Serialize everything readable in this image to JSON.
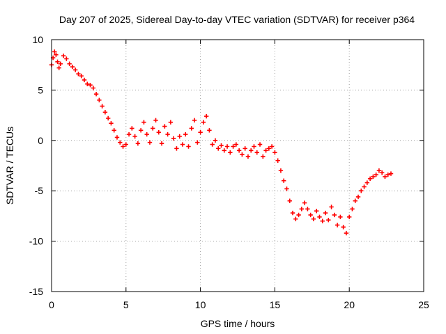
{
  "chart_data": {
    "type": "scatter",
    "title": "Day 207 of 2025, Sidereal Day-to-day VTEC variation (SDTVAR) for receiver p364",
    "xlabel": "GPS time / hours",
    "ylabel": "SDTVAR / TECUs",
    "xlim": [
      0,
      25
    ],
    "ylim": [
      -15,
      10
    ],
    "xticks": [
      0,
      5,
      10,
      15,
      20,
      25
    ],
    "yticks": [
      -15,
      -10,
      -5,
      0,
      5,
      10
    ],
    "x_tick_labels": [
      "0",
      "5",
      "10",
      "15",
      "20",
      "25"
    ],
    "y_tick_labels": [
      "-15",
      "-10",
      "-5",
      "0",
      "5",
      "10"
    ],
    "grid": true,
    "marker": "plus",
    "series": [
      {
        "name": "SDTVAR",
        "color": "#ff0000",
        "x": [
          0.0,
          0.1,
          0.2,
          0.3,
          0.4,
          0.5,
          0.6,
          0.8,
          1.0,
          1.2,
          1.4,
          1.6,
          1.8,
          2.0,
          2.2,
          2.4,
          2.6,
          2.8,
          3.0,
          3.2,
          3.4,
          3.6,
          3.8,
          4.0,
          4.2,
          4.4,
          4.6,
          4.8,
          5.0,
          5.2,
          5.4,
          5.6,
          5.8,
          6.0,
          6.2,
          6.4,
          6.6,
          6.8,
          7.0,
          7.2,
          7.4,
          7.6,
          7.8,
          8.0,
          8.2,
          8.4,
          8.6,
          8.8,
          9.0,
          9.2,
          9.4,
          9.6,
          9.8,
          10.0,
          10.2,
          10.4,
          10.6,
          10.8,
          11.0,
          11.2,
          11.4,
          11.6,
          11.8,
          12.0,
          12.2,
          12.4,
          12.6,
          12.8,
          13.0,
          13.2,
          13.4,
          13.6,
          13.8,
          14.0,
          14.2,
          14.4,
          14.6,
          14.8,
          15.0,
          15.2,
          15.4,
          15.6,
          15.8,
          16.0,
          16.2,
          16.4,
          16.6,
          16.8,
          17.0,
          17.2,
          17.4,
          17.6,
          17.8,
          18.0,
          18.2,
          18.4,
          18.6,
          18.8,
          19.0,
          19.2,
          19.4,
          19.6,
          19.8,
          20.0,
          20.2,
          20.4,
          20.6,
          20.8,
          21.0,
          21.2,
          21.4,
          21.6,
          21.8,
          22.0,
          22.2,
          22.4,
          22.6,
          22.8
        ],
        "y": [
          7.5,
          8.2,
          8.8,
          8.5,
          7.8,
          7.2,
          7.6,
          8.4,
          8.1,
          7.6,
          7.3,
          7.0,
          6.6,
          6.4,
          6.0,
          5.6,
          5.5,
          5.2,
          4.6,
          4.0,
          3.4,
          2.8,
          2.2,
          1.7,
          1.0,
          0.3,
          -0.2,
          -0.6,
          -0.4,
          0.6,
          1.2,
          0.4,
          -0.3,
          1.0,
          1.8,
          0.6,
          -0.2,
          1.2,
          2.0,
          0.8,
          -0.3,
          1.4,
          0.6,
          1.8,
          0.2,
          -0.8,
          0.4,
          -0.4,
          0.6,
          -0.6,
          1.2,
          2.0,
          -0.2,
          0.8,
          1.8,
          2.4,
          1.0,
          -0.4,
          0.0,
          -0.8,
          -0.5,
          -1.0,
          -0.6,
          -1.2,
          -0.6,
          -0.4,
          -1.0,
          -1.4,
          -0.8,
          -1.6,
          -1.0,
          -0.6,
          -1.2,
          -0.4,
          -1.6,
          -1.0,
          -0.8,
          -0.6,
          -1.2,
          -2.0,
          -3.0,
          -4.0,
          -4.8,
          -6.0,
          -7.2,
          -7.8,
          -7.4,
          -6.8,
          -6.2,
          -6.8,
          -7.4,
          -7.8,
          -7.0,
          -7.6,
          -8.0,
          -7.2,
          -7.9,
          -6.6,
          -7.4,
          -8.4,
          -7.6,
          -8.6,
          -9.2,
          -7.6,
          -6.8,
          -6.0,
          -5.6,
          -5.0,
          -4.6,
          -4.2,
          -3.8,
          -3.6,
          -3.4,
          -3.0,
          -3.2,
          -3.6,
          -3.4,
          -3.3
        ]
      }
    ]
  }
}
